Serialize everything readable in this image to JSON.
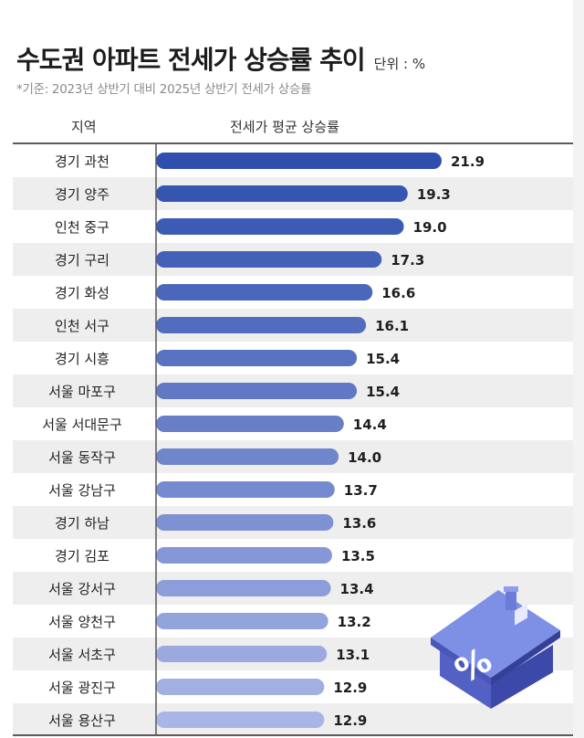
{
  "header": {
    "title": "수도권 아파트 전세가 상승률 추이",
    "unit": "단위 : %",
    "subtitle": "*기준: 2023년 상반기 대비 2025년 상반기 전세가 상승률"
  },
  "table": {
    "col_region": "지역",
    "col_value": "전세가 평균 상승률"
  },
  "colors": {
    "bar_dark": "#2e4fae",
    "bar_light": "#a9b5e6",
    "stripe": "#eeeeee"
  },
  "icon": "house-percent-icon",
  "chart_data": {
    "type": "bar",
    "orientation": "horizontal",
    "categories": [
      "경기 과천",
      "경기 양주",
      "인천 중구",
      "경기 구리",
      "경기 화성",
      "인천 서구",
      "경기 시흥",
      "서울 마포구",
      "서울 서대문구",
      "서울 동작구",
      "서울 강남구",
      "경기 하남",
      "경기 김포",
      "서울 강서구",
      "서울 양천구",
      "서울 서초구",
      "서울 광진구",
      "서울 용산구"
    ],
    "values": [
      21.9,
      19.3,
      19.0,
      17.3,
      16.6,
      16.1,
      15.4,
      15.4,
      14.4,
      14.0,
      13.7,
      13.6,
      13.5,
      13.4,
      13.2,
      13.1,
      12.9,
      12.9
    ],
    "value_labels": [
      "21.9",
      "19.3",
      "19.0",
      "17.3",
      "16.6",
      "16.1",
      "15.4",
      "15.4",
      "14.4",
      "14.0",
      "13.7",
      "13.6",
      "13.5",
      "13.4",
      "13.2",
      "13.1",
      "12.9",
      "12.9"
    ],
    "xlim": [
      0,
      21.9
    ],
    "grid": false,
    "legend": "none"
  }
}
